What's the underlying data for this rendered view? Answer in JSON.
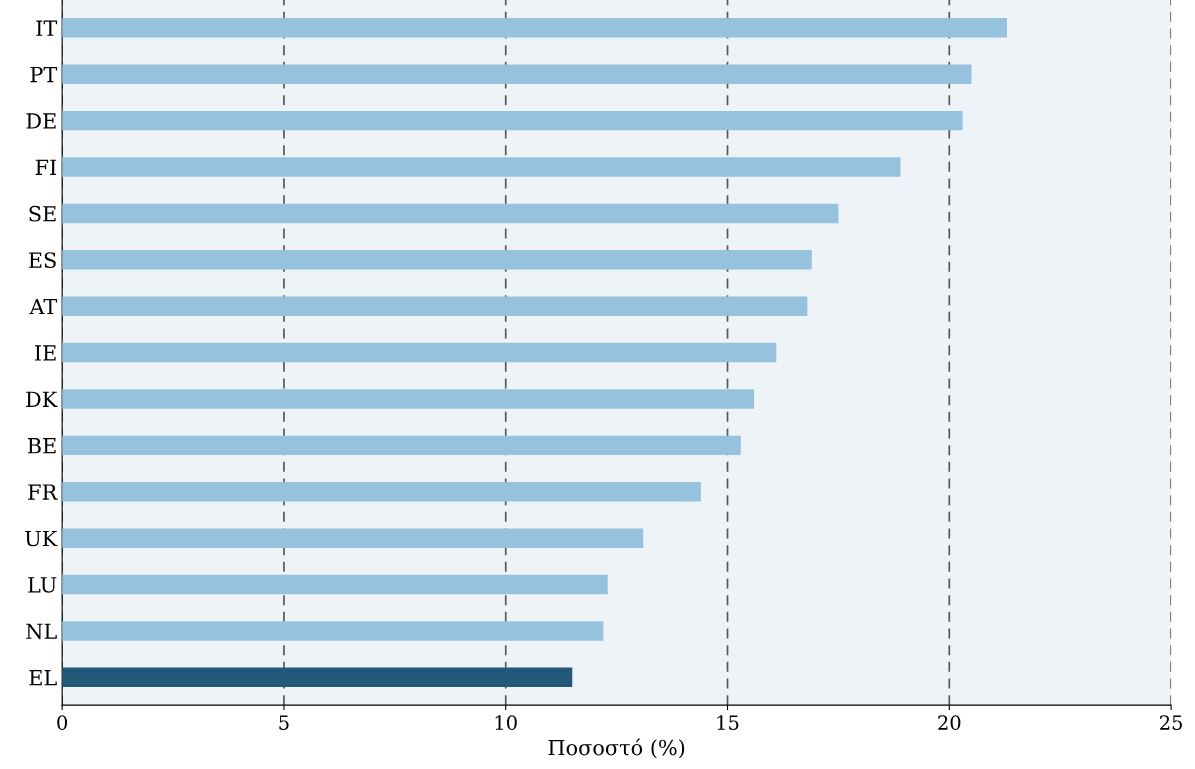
{
  "chart_data": {
    "type": "bar",
    "orientation": "horizontal",
    "xlabel": "Ποσοστό (%)",
    "categories": [
      "IT",
      "PT",
      "DE",
      "FI",
      "SE",
      "ES",
      "AT",
      "IE",
      "DK",
      "BE",
      "FR",
      "UK",
      "LU",
      "NL",
      "EL"
    ],
    "values": [
      21.3,
      20.5,
      20.3,
      18.9,
      17.5,
      16.9,
      16.8,
      16.1,
      15.6,
      15.3,
      14.4,
      13.1,
      12.3,
      12.2,
      11.5
    ],
    "colors": [
      "#97c2de",
      "#97c2de",
      "#97c2de",
      "#97c2de",
      "#97c2de",
      "#97c2de",
      "#97c2de",
      "#97c2de",
      "#97c2de",
      "#97c2de",
      "#97c2de",
      "#97c2de",
      "#97c2de",
      "#97c2de",
      "#225878"
    ],
    "xlim": [
      0,
      25
    ],
    "xticks": [
      0,
      5,
      10,
      15,
      20,
      25
    ],
    "grid": "x",
    "line_style": "dashed"
  }
}
